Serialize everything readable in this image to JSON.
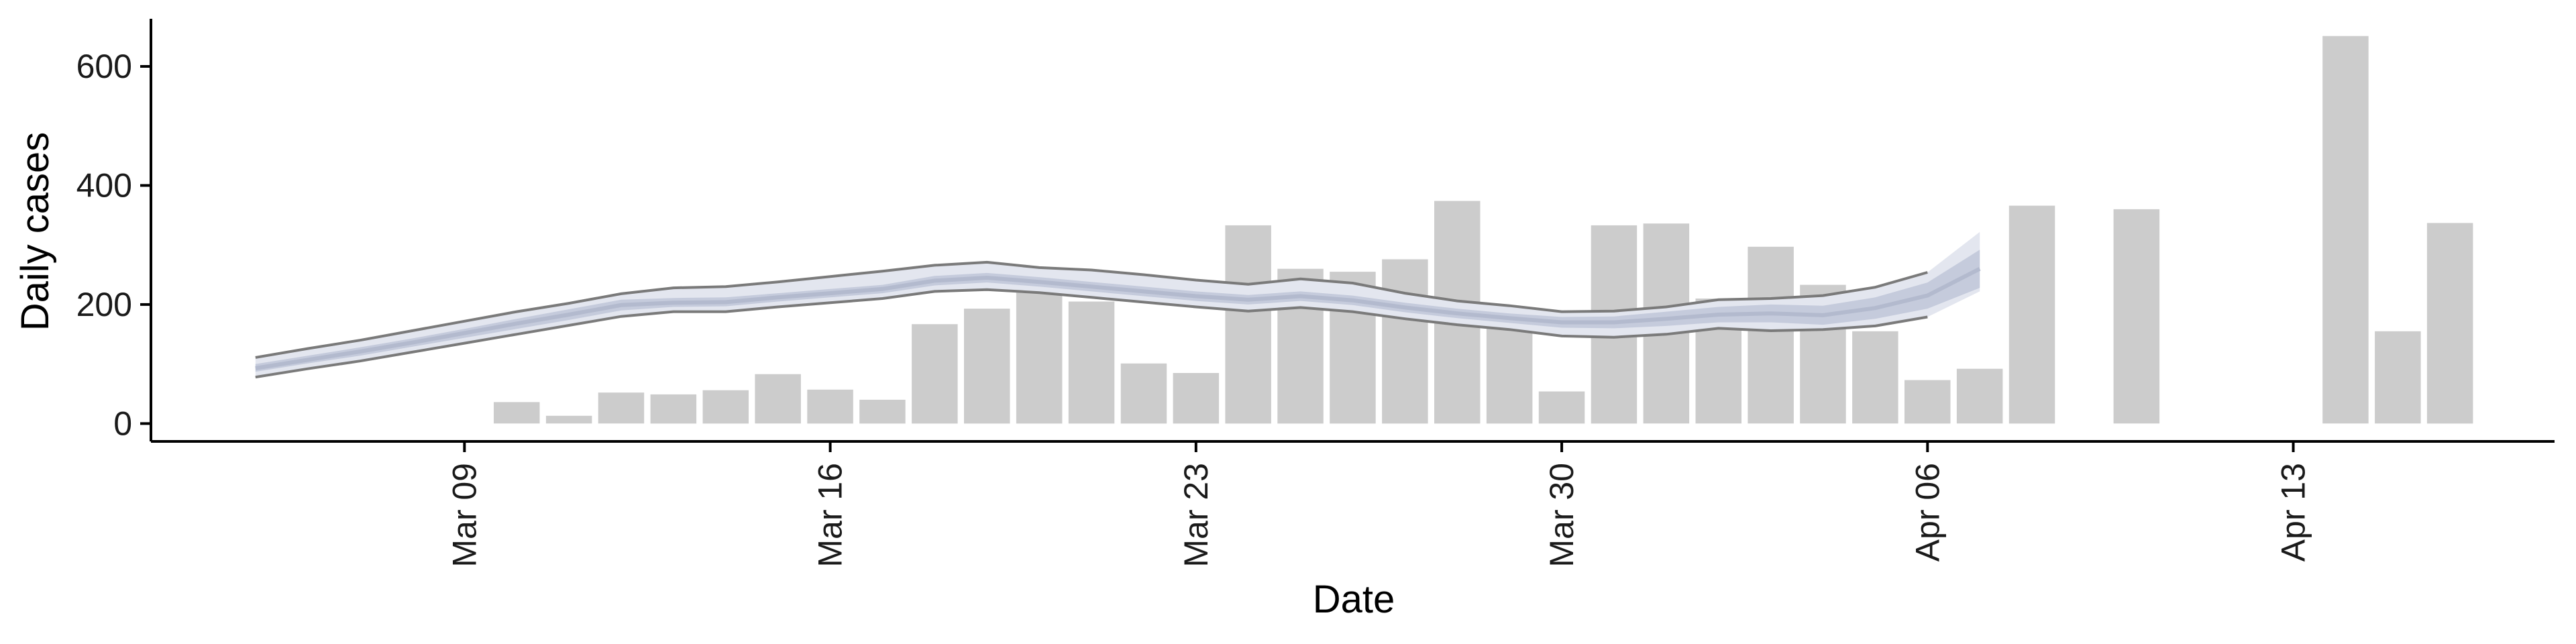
{
  "chart_data": {
    "type": "bar",
    "xlabel": "Date",
    "ylabel": "Daily cases",
    "ylim": [
      -30,
      680
    ],
    "yticks": [
      0,
      200,
      400,
      600
    ],
    "xticks": [
      {
        "date": "2020-03-09",
        "label": "Mar 09"
      },
      {
        "date": "2020-03-16",
        "label": "Mar 16"
      },
      {
        "date": "2020-03-23",
        "label": "Mar 23"
      },
      {
        "date": "2020-03-30",
        "label": "Mar 30"
      },
      {
        "date": "2020-04-06",
        "label": "Apr 06"
      },
      {
        "date": "2020-04-13",
        "label": "Apr 13"
      }
    ],
    "xrange": [
      "2020-03-03",
      "2020-04-18"
    ],
    "bars": [
      {
        "date": "2020-03-10",
        "value": 36
      },
      {
        "date": "2020-03-11",
        "value": 13
      },
      {
        "date": "2020-03-12",
        "value": 52
      },
      {
        "date": "2020-03-13",
        "value": 49
      },
      {
        "date": "2020-03-14",
        "value": 56
      },
      {
        "date": "2020-03-15",
        "value": 83
      },
      {
        "date": "2020-03-16",
        "value": 57
      },
      {
        "date": "2020-03-17",
        "value": 40
      },
      {
        "date": "2020-03-18",
        "value": 167
      },
      {
        "date": "2020-03-19",
        "value": 193
      },
      {
        "date": "2020-03-20",
        "value": 223
      },
      {
        "date": "2020-03-21",
        "value": 205
      },
      {
        "date": "2020-03-22",
        "value": 101
      },
      {
        "date": "2020-03-23",
        "value": 85
      },
      {
        "date": "2020-03-24",
        "value": 333
      },
      {
        "date": "2020-03-25",
        "value": 260
      },
      {
        "date": "2020-03-26",
        "value": 255
      },
      {
        "date": "2020-03-27",
        "value": 276
      },
      {
        "date": "2020-03-28",
        "value": 374
      },
      {
        "date": "2020-03-29",
        "value": 188
      },
      {
        "date": "2020-03-30",
        "value": 54
      },
      {
        "date": "2020-03-31",
        "value": 333
      },
      {
        "date": "2020-04-01",
        "value": 336
      },
      {
        "date": "2020-04-02",
        "value": 210
      },
      {
        "date": "2020-04-03",
        "value": 297
      },
      {
        "date": "2020-04-04",
        "value": 233
      },
      {
        "date": "2020-04-05",
        "value": 155
      },
      {
        "date": "2020-04-06",
        "value": 73
      },
      {
        "date": "2020-04-07",
        "value": 92
      },
      {
        "date": "2020-04-08",
        "value": 366
      },
      {
        "date": "2020-04-10",
        "value": 360
      },
      {
        "date": "2020-04-14",
        "value": 651
      },
      {
        "date": "2020-04-15",
        "value": 155
      },
      {
        "date": "2020-04-16",
        "value": 337
      }
    ],
    "estimate": {
      "dates": [
        "2020-03-05",
        "2020-03-06",
        "2020-03-07",
        "2020-03-08",
        "2020-03-09",
        "2020-03-10",
        "2020-03-11",
        "2020-03-12",
        "2020-03-13",
        "2020-03-14",
        "2020-03-15",
        "2020-03-16",
        "2020-03-17",
        "2020-03-18",
        "2020-03-19",
        "2020-03-20",
        "2020-03-21",
        "2020-03-22",
        "2020-03-23",
        "2020-03-24",
        "2020-03-25",
        "2020-03-26",
        "2020-03-27",
        "2020-03-28",
        "2020-03-29",
        "2020-03-30",
        "2020-03-31",
        "2020-04-01",
        "2020-04-02",
        "2020-04-03",
        "2020-04-04",
        "2020-04-05",
        "2020-04-06",
        "2020-04-07"
      ],
      "median": [
        93,
        107,
        121,
        136,
        152,
        168,
        183,
        199,
        203,
        204,
        212,
        219,
        226,
        240,
        245,
        238,
        230,
        222,
        214,
        208,
        214,
        207,
        195,
        185,
        177,
        170,
        170,
        176,
        183,
        185,
        182,
        194,
        215,
        260
      ],
      "inner_low": [
        87,
        101,
        114,
        129,
        144,
        159,
        174,
        190,
        196,
        197,
        205,
        212,
        219,
        232,
        237,
        230,
        222,
        214,
        206,
        200,
        206,
        199,
        187,
        177,
        169,
        161,
        160,
        164,
        170,
        170,
        166,
        176,
        193,
        228
      ],
      "inner_high": [
        100,
        114,
        128,
        143,
        159,
        176,
        192,
        208,
        211,
        212,
        219,
        226,
        233,
        248,
        253,
        246,
        238,
        230,
        222,
        216,
        222,
        215,
        203,
        193,
        185,
        179,
        180,
        188,
        196,
        200,
        198,
        212,
        237,
        292
      ],
      "outer_low": [
        78,
        92,
        105,
        120,
        135,
        150,
        165,
        180,
        188,
        188,
        196,
        203,
        210,
        222,
        225,
        220,
        212,
        204,
        196,
        189,
        195,
        188,
        176,
        166,
        158,
        147,
        145,
        150,
        160,
        156,
        158,
        164,
        179,
        222
      ],
      "outer_high": [
        111,
        126,
        140,
        156,
        172,
        188,
        202,
        218,
        228,
        230,
        238,
        247,
        256,
        266,
        271,
        262,
        258,
        250,
        241,
        234,
        243,
        236,
        219,
        206,
        198,
        188,
        189,
        196,
        208,
        210,
        215,
        229,
        254,
        322
      ]
    },
    "colors": {
      "bars": "#cccccc",
      "ribbon_outer": "#e3e6ef",
      "ribbon_inner": "#c5cbdc",
      "median_line": "#b3bace",
      "bound_lines": "#7a7a7a",
      "axis": "#000000"
    },
    "grid": false,
    "legend": "none"
  }
}
